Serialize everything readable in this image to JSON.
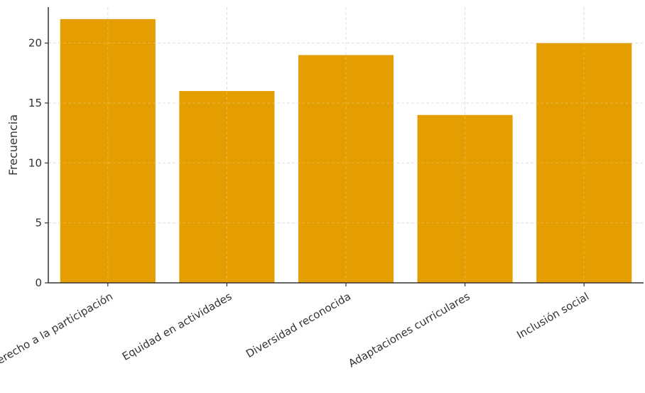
{
  "chart_data": {
    "type": "bar",
    "categories": [
      "Derecho a la participación",
      "Equidad en actividades",
      "Diversidad reconocida",
      "Adaptaciones curriculares",
      "Inclusión social"
    ],
    "values": [
      22,
      16,
      19,
      14,
      20
    ],
    "title": "",
    "xlabel": "",
    "ylabel": "Frecuencia",
    "ylim": [
      0,
      23
    ],
    "yticks": [
      0,
      5,
      10,
      15,
      20
    ],
    "grid": true,
    "bar_color": "#E49E00",
    "grid_color": "#d6d6d6",
    "axis_color": "#333333"
  }
}
